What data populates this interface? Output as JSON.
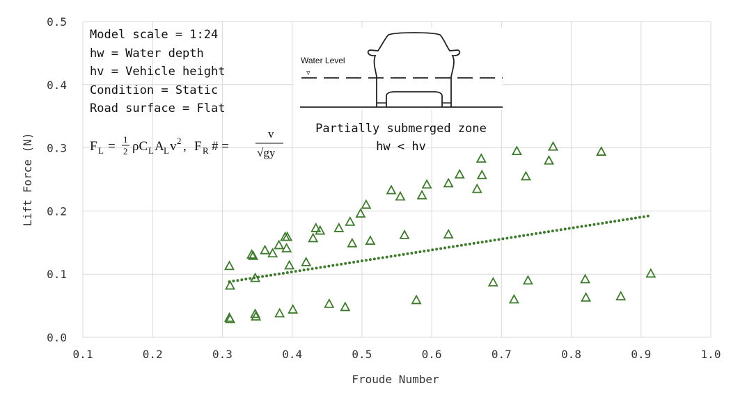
{
  "chart_data": {
    "type": "scatter",
    "title": "",
    "xlabel": "Froude Number",
    "ylabel": "Lift Force (N)",
    "xlim": [
      0.1,
      1.0
    ],
    "ylim": [
      0.0,
      0.5
    ],
    "xticks": [
      "0.1",
      "0.2",
      "0.3",
      "0.4",
      "0.5",
      "0.6",
      "0.7",
      "0.8",
      "0.9",
      "1.0"
    ],
    "yticks": [
      "0.0",
      "0.1",
      "0.2",
      "0.3",
      "0.4",
      "0.5"
    ],
    "grid": true,
    "marker": "open-triangle",
    "color": "#3f7a2e",
    "points": [
      [
        0.31,
        0.113
      ],
      [
        0.311,
        0.082
      ],
      [
        0.31,
        0.031
      ],
      [
        0.311,
        0.029
      ],
      [
        0.342,
        0.131
      ],
      [
        0.344,
        0.129
      ],
      [
        0.347,
        0.094
      ],
      [
        0.347,
        0.037
      ],
      [
        0.348,
        0.033
      ],
      [
        0.361,
        0.138
      ],
      [
        0.372,
        0.133
      ],
      [
        0.381,
        0.146
      ],
      [
        0.382,
        0.038
      ],
      [
        0.39,
        0.159
      ],
      [
        0.392,
        0.141
      ],
      [
        0.393,
        0.159
      ],
      [
        0.396,
        0.114
      ],
      [
        0.401,
        0.044
      ],
      [
        0.42,
        0.119
      ],
      [
        0.43,
        0.157
      ],
      [
        0.434,
        0.173
      ],
      [
        0.44,
        0.169
      ],
      [
        0.453,
        0.053
      ],
      [
        0.467,
        0.173
      ],
      [
        0.476,
        0.048
      ],
      [
        0.483,
        0.183
      ],
      [
        0.486,
        0.149
      ],
      [
        0.498,
        0.196
      ],
      [
        0.506,
        0.21
      ],
      [
        0.512,
        0.153
      ],
      [
        0.542,
        0.233
      ],
      [
        0.555,
        0.223
      ],
      [
        0.561,
        0.162
      ],
      [
        0.578,
        0.059
      ],
      [
        0.586,
        0.225
      ],
      [
        0.593,
        0.242
      ],
      [
        0.624,
        0.244
      ],
      [
        0.624,
        0.163
      ],
      [
        0.64,
        0.258
      ],
      [
        0.665,
        0.235
      ],
      [
        0.671,
        0.283
      ],
      [
        0.672,
        0.257
      ],
      [
        0.688,
        0.087
      ],
      [
        0.718,
        0.06
      ],
      [
        0.722,
        0.295
      ],
      [
        0.735,
        0.255
      ],
      [
        0.738,
        0.09
      ],
      [
        0.768,
        0.28
      ],
      [
        0.774,
        0.302
      ],
      [
        0.82,
        0.092
      ],
      [
        0.821,
        0.063
      ],
      [
        0.843,
        0.294
      ],
      [
        0.871,
        0.065
      ],
      [
        0.914,
        0.101
      ]
    ],
    "trendline": {
      "style": "dotted",
      "x": [
        0.31,
        0.91
      ],
      "y": [
        0.088,
        0.192
      ]
    }
  },
  "annotations": {
    "lines": [
      "Model scale = 1:24",
      "hw = Water depth",
      "hv = Vehicle height",
      "Condition = Static",
      "Road surface = Flat"
    ],
    "formula": {
      "fl_F": "F",
      "fl_sub": "L",
      "fl_eq": "=",
      "half_num": "1",
      "half_den": "2",
      "fl_rest1": "ρC",
      "fl_rest_sub1": "L",
      "fl_rest2": "A",
      "fl_rest_sub2": "L",
      "fl_rest3": "v",
      "fl_sup": "2",
      "comma": ",",
      "fr_F": "F",
      "fr_sub": "R",
      "fr_hash": "# =",
      "fr_num": "v",
      "fr_den": "√gy"
    },
    "inset": {
      "water_label": "Water Level",
      "water_marker": "▿",
      "zone_title": "Partially submerged zone",
      "zone_condition": "hw < hv"
    }
  }
}
